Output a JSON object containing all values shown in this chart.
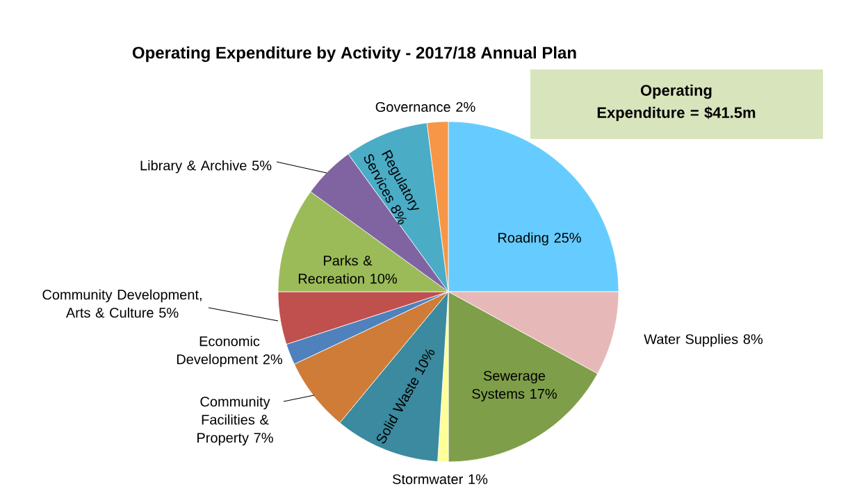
{
  "chart_data": {
    "type": "pie",
    "title": "Operating Expenditure by Activity - 2017/18 Annual Plan",
    "categories": [
      "Roading",
      "Water Supplies",
      "Sewerage Systems",
      "Stormwater",
      "Solid Waste",
      "Community Facilities & Property",
      "Economic Development",
      "Community Development, Arts & Culture",
      "Parks & Recreation",
      "Library & Archive",
      "Regulatory Services",
      "Governance"
    ],
    "values": [
      25,
      8,
      17,
      1,
      10,
      7,
      2,
      5,
      10,
      5,
      8,
      2
    ],
    "value_labels": [
      "25%",
      "8%",
      "17%",
      "1%",
      "10%",
      "7%",
      "2%",
      "5%",
      "10%",
      "5%",
      "8%",
      "2%"
    ],
    "colors": [
      "#66ccff",
      "#e6b9b8",
      "#7f9e49",
      "#ffff99",
      "#3b8a9f",
      "#cf7c38",
      "#4f81bd",
      "#c0504d",
      "#9bbb59",
      "#8064a2",
      "#4bacc6",
      "#f79646"
    ],
    "annotations": [
      "Operating Expenditure = $41.5m"
    ]
  }
}
